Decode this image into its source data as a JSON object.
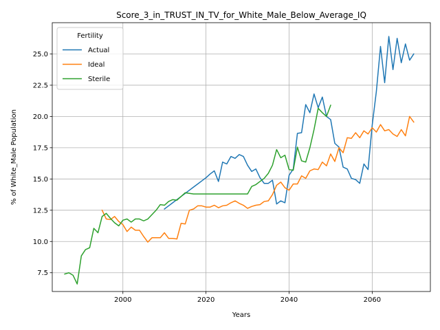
{
  "chart_data": {
    "type": "line",
    "title": "Score_3_in_TRUST_IN_TV_for_White_Male_Below_Average_IQ",
    "xlabel": "Years",
    "ylabel": "% of White_Male Population",
    "xlim": [
      1983,
      2074
    ],
    "ylim": [
      6.0,
      27.5
    ],
    "xticks": [
      2000,
      2020,
      2040,
      2060
    ],
    "yticks": [
      7.5,
      10.0,
      12.5,
      15.0,
      17.5,
      20.0,
      22.5,
      25.0
    ],
    "grid": true,
    "legend": {
      "title": "Fertility",
      "position": "top-left"
    },
    "series": [
      {
        "name": "Actual",
        "color": "#1f77b4",
        "x": [
          2010,
          2011,
          2012,
          2013,
          2014,
          2015,
          2016,
          2017,
          2018,
          2019,
          2020,
          2021,
          2022,
          2023,
          2024,
          2025,
          2026,
          2027,
          2028,
          2029,
          2030,
          2031,
          2032,
          2033,
          2034,
          2035,
          2036,
          2037,
          2038,
          2039,
          2040,
          2041,
          2042,
          2043,
          2044,
          2045,
          2046,
          2047,
          2048,
          2049,
          2050,
          2051,
          2052,
          2053,
          2054,
          2055,
          2056,
          2057,
          2058,
          2059,
          2060,
          2061,
          2062,
          2063,
          2064,
          2065,
          2066,
          2067,
          2068,
          2069,
          2070
        ],
        "y": [
          12.6,
          12.85,
          13.1,
          13.35,
          13.6,
          13.85,
          14.1,
          14.35,
          14.6,
          14.85,
          15.1,
          15.4,
          15.65,
          14.8,
          16.35,
          16.2,
          16.8,
          16.65,
          16.95,
          16.8,
          16.1,
          15.6,
          15.8,
          15.1,
          14.65,
          14.65,
          14.9,
          13.0,
          13.25,
          13.1,
          15.3,
          15.8,
          18.65,
          18.7,
          20.95,
          20.3,
          21.8,
          20.7,
          21.55,
          20.0,
          19.75,
          17.85,
          17.55,
          15.95,
          15.8,
          15.05,
          14.95,
          14.65,
          16.2,
          15.75,
          19.3,
          22.0,
          25.6,
          22.7,
          26.4,
          23.75,
          26.25,
          24.3,
          25.8,
          24.5,
          25.0
        ]
      },
      {
        "name": "Ideal",
        "color": "#ff7f0e",
        "x": [
          1995,
          1996,
          1997,
          1998,
          1999,
          2000,
          2001,
          2002,
          2003,
          2004,
          2005,
          2006,
          2007,
          2008,
          2009,
          2010,
          2011,
          2012,
          2013,
          2014,
          2015,
          2016,
          2017,
          2018,
          2019,
          2020,
          2021,
          2022,
          2023,
          2024,
          2025,
          2026,
          2027,
          2028,
          2029,
          2030,
          2031,
          2032,
          2033,
          2034,
          2035,
          2036,
          2037,
          2038,
          2039,
          2040,
          2041,
          2042,
          2043,
          2044,
          2045,
          2046,
          2047,
          2048,
          2049,
          2050,
          2051,
          2052,
          2053,
          2054,
          2055,
          2056,
          2057,
          2058,
          2059,
          2060,
          2061,
          2062,
          2063,
          2064,
          2065,
          2066,
          2067,
          2068,
          2069,
          2070
        ],
        "y": [
          12.5,
          11.8,
          11.75,
          12.0,
          11.6,
          11.35,
          10.8,
          11.15,
          10.9,
          10.9,
          10.4,
          9.95,
          10.3,
          10.3,
          10.3,
          10.7,
          10.25,
          10.25,
          10.2,
          11.45,
          11.4,
          12.5,
          12.6,
          12.85,
          12.85,
          12.75,
          12.75,
          12.9,
          12.7,
          12.85,
          12.9,
          13.1,
          13.25,
          13.05,
          12.9,
          12.65,
          12.8,
          12.9,
          12.95,
          13.2,
          13.25,
          13.75,
          14.5,
          14.75,
          14.3,
          14.1,
          14.6,
          14.6,
          15.25,
          15.05,
          15.65,
          15.8,
          15.75,
          16.35,
          16.05,
          17.0,
          16.4,
          17.5,
          17.1,
          18.3,
          18.25,
          18.7,
          18.3,
          18.85,
          18.6,
          19.1,
          18.75,
          19.35,
          18.85,
          18.95,
          18.6,
          18.4,
          18.95,
          18.45,
          20.0,
          19.55
        ]
      },
      {
        "name": "Sterile",
        "color": "#2ca02c",
        "x": [
          1986,
          1987,
          1988,
          1989,
          1990,
          1991,
          1992,
          1993,
          1994,
          1995,
          1996,
          1997,
          1998,
          1999,
          2000,
          2001,
          2002,
          2003,
          2004,
          2005,
          2006,
          2007,
          2008,
          2009,
          2010,
          2011,
          2012,
          2013,
          2014,
          2015,
          2016,
          2017,
          2018,
          2019,
          2020,
          2021,
          2022,
          2023,
          2024,
          2025,
          2026,
          2027,
          2028,
          2029,
          2030,
          2031,
          2032,
          2033,
          2034,
          2035,
          2036,
          2037,
          2038,
          2039,
          2040,
          2041,
          2042,
          2043,
          2044,
          2045,
          2046,
          2047,
          2048,
          2049,
          2050
        ],
        "y": [
          7.4,
          7.5,
          7.3,
          6.6,
          8.85,
          9.35,
          9.5,
          11.05,
          10.7,
          12.0,
          12.25,
          11.85,
          11.5,
          11.25,
          11.7,
          11.8,
          11.55,
          11.8,
          11.8,
          11.65,
          11.8,
          12.15,
          12.5,
          12.95,
          12.9,
          13.2,
          13.35,
          13.3,
          13.6,
          13.9,
          13.85,
          13.8,
          13.8,
          13.8,
          13.8,
          13.8,
          13.8,
          13.8,
          13.8,
          13.8,
          13.8,
          13.8,
          13.8,
          13.8,
          13.8,
          14.4,
          14.55,
          14.8,
          15.05,
          15.45,
          16.1,
          17.35,
          16.7,
          16.9,
          15.75,
          15.7,
          17.55,
          16.45,
          16.35,
          17.5,
          18.95,
          20.65,
          20.3,
          20.0,
          20.9
        ]
      }
    ]
  }
}
